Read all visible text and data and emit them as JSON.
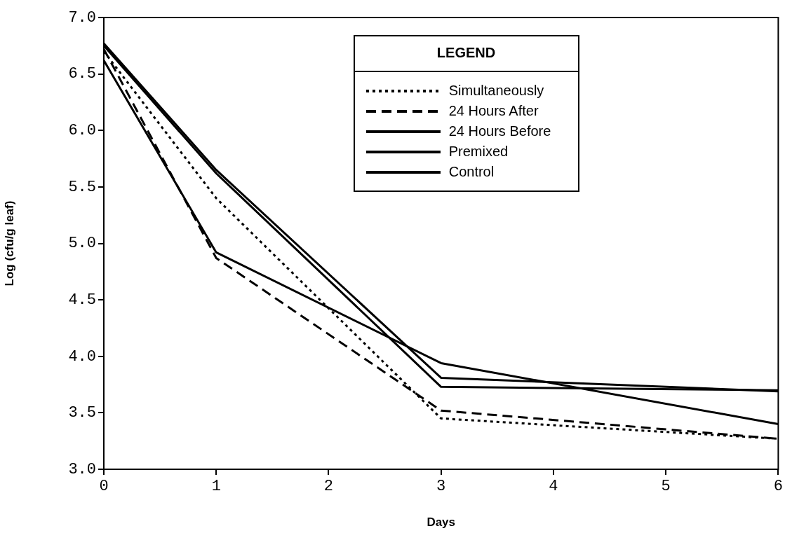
{
  "chart_data": {
    "type": "line",
    "xlabel": "Days",
    "ylabel": "Log (cfu/g leaf)",
    "legend_title": "LEGEND",
    "legend": "top right",
    "grid": false,
    "marker": "none",
    "x": [
      0,
      1,
      3,
      6
    ],
    "xlim": [
      0,
      6
    ],
    "xticks": [
      0,
      1,
      2,
      3,
      4,
      5,
      6
    ],
    "ylim": [
      3,
      7
    ],
    "yticks": [
      {
        "value": 3,
        "label": "3.0"
      },
      {
        "value": 3.5,
        "label": "3.5"
      },
      {
        "value": 4,
        "label": "4.0"
      },
      {
        "value": 4.5,
        "label": "4.5"
      },
      {
        "value": 5,
        "label": "5.0"
      },
      {
        "value": 5.5,
        "label": "5.5"
      },
      {
        "value": 6,
        "label": "6.0"
      },
      {
        "value": 6.5,
        "label": "6.5"
      },
      {
        "value": 7,
        "label": "7.0"
      }
    ],
    "series": [
      {
        "name": "Simultaneously",
        "color": "#000000",
        "line_style": "dotted",
        "values": [
          6.7,
          5.4,
          3.45,
          3.27
        ]
      },
      {
        "name": "24 Hours After",
        "color": "#000000",
        "line_style": "dashed",
        "values": [
          6.72,
          4.87,
          3.52,
          3.27
        ]
      },
      {
        "name": "24 Hours Before",
        "color": "#000000",
        "line_style": "solid",
        "values": [
          6.62,
          4.92,
          3.94,
          3.4
        ]
      },
      {
        "name": "Premixed",
        "color": "#000000",
        "line_style": "solid",
        "values": [
          6.77,
          5.65,
          3.81,
          3.69
        ]
      },
      {
        "name": "Control",
        "color": "#000000",
        "line_style": "solid",
        "values": [
          6.75,
          5.62,
          3.73,
          3.7
        ]
      }
    ]
  }
}
